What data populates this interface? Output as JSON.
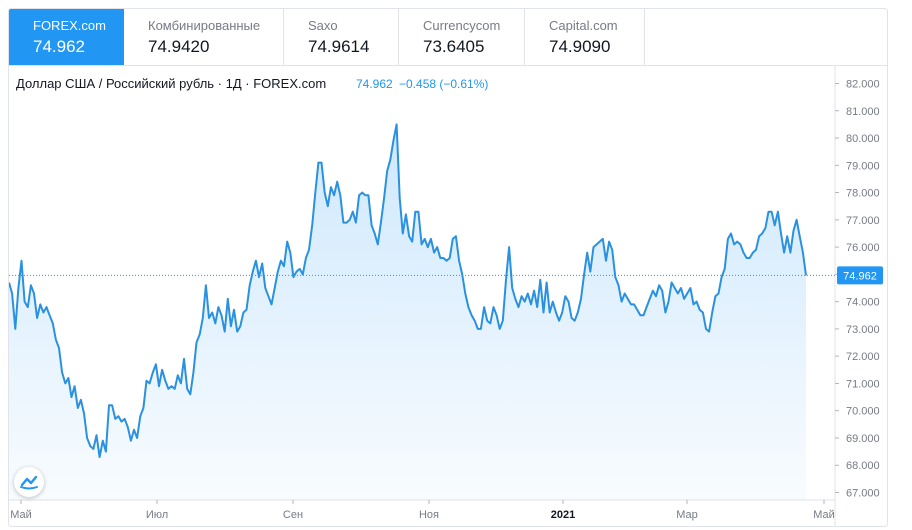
{
  "tabs": [
    {
      "name": "FOREX.com",
      "value": "74.962"
    },
    {
      "name": "Комбинированные",
      "value": "74.9420"
    },
    {
      "name": "Saxo",
      "value": "74.9614"
    },
    {
      "name": "Currencycom",
      "value": "73.6405"
    },
    {
      "name": "Capital.com",
      "value": "74.9090"
    }
  ],
  "legend": {
    "title": "Доллар США / Российский рубль · 1Д · FOREX.com",
    "price": "74.962",
    "change": "−0.458 (−0.61%)"
  },
  "last_price_label": "74.962",
  "colors": {
    "accent": "#2196f3",
    "line": "#2a91e0",
    "fill": "#2196f3",
    "axis_text": "#787b86",
    "grid": "#e0e3eb"
  },
  "icons": {
    "logo": "tradingview-logo-icon"
  },
  "chart_data": {
    "type": "area",
    "title": "Доллар США / Российский рубль · 1Д · FOREX.com",
    "xlabel": "",
    "ylabel": "",
    "ylim": [
      67.0,
      82.5
    ],
    "y_ticks": [
      "82.000",
      "81.000",
      "80.000",
      "79.000",
      "78.000",
      "77.000",
      "76.000",
      "75.000",
      "74.000",
      "73.000",
      "72.000",
      "71.000",
      "70.000",
      "69.000",
      "68.000",
      "67.000"
    ],
    "x_ticks": [
      "Май",
      "Июл",
      "Сен",
      "Ноя",
      "2021",
      "Мар",
      "Май"
    ],
    "y_axis_side": "right",
    "grid": false,
    "last_value": 74.962,
    "values": [
      74.7,
      74.3,
      73.0,
      74.5,
      75.5,
      74.0,
      73.8,
      74.6,
      74.3,
      73.4,
      73.9,
      73.6,
      73.8,
      73.5,
      73.2,
      72.6,
      72.3,
      71.4,
      71.0,
      71.2,
      70.5,
      70.9,
      70.1,
      70.4,
      69.9,
      69.0,
      68.7,
      68.6,
      69.1,
      68.3,
      68.9,
      68.5,
      70.2,
      70.2,
      69.7,
      69.8,
      69.6,
      69.7,
      69.4,
      68.9,
      69.3,
      69.0,
      69.8,
      70.1,
      71.1,
      71.0,
      71.4,
      71.7,
      70.9,
      71.5,
      71.1,
      70.8,
      70.9,
      70.8,
      71.3,
      71.0,
      71.9,
      70.8,
      70.6,
      71.4,
      72.5,
      72.8,
      73.4,
      74.6,
      73.4,
      73.6,
      73.2,
      73.8,
      73.5,
      72.9,
      74.1,
      73.1,
      73.7,
      72.9,
      73.1,
      73.6,
      73.7,
      74.6,
      75.1,
      75.5,
      74.9,
      75.4,
      74.5,
      74.2,
      73.9,
      74.5,
      75.1,
      75.5,
      75.3,
      76.2,
      75.8,
      74.9,
      75.1,
      75.2,
      75.0,
      75.6,
      75.9,
      76.8,
      78.0,
      79.1,
      79.1,
      78.0,
      77.5,
      78.2,
      77.9,
      78.4,
      77.9,
      76.9,
      76.9,
      77.0,
      77.3,
      76.9,
      77.9,
      78.0,
      77.9,
      77.9,
      76.8,
      76.5,
      76.1,
      76.9,
      77.8,
      78.8,
      79.2,
      79.9,
      80.5,
      77.8,
      76.5,
      77.2,
      76.4,
      76.2,
      77.3,
      77.3,
      76.1,
      76.3,
      76.0,
      76.3,
      75.8,
      76.0,
      75.6,
      75.6,
      75.5,
      75.6,
      76.3,
      76.4,
      75.5,
      75.0,
      74.3,
      73.8,
      73.5,
      73.3,
      73.0,
      73.0,
      73.8,
      73.3,
      73.2,
      73.8,
      73.5,
      73.0,
      73.3,
      74.8,
      76.0,
      74.5,
      74.1,
      73.8,
      74.2,
      74.0,
      74.3,
      73.9,
      74.4,
      73.8,
      74.8,
      73.6,
      74.7,
      73.6,
      74.0,
      73.6,
      73.3,
      73.6,
      74.2,
      74.0,
      73.4,
      73.3,
      73.6,
      74.1,
      75.0,
      75.8,
      75.1,
      76.0,
      76.1,
      76.2,
      76.3,
      75.5,
      76.2,
      75.9,
      74.9,
      74.6,
      74.0,
      74.3,
      74.1,
      73.9,
      73.9,
      73.7,
      73.5,
      73.5,
      73.8,
      74.1,
      74.4,
      74.2,
      74.6,
      74.4,
      73.6,
      74.0,
      74.7,
      74.5,
      74.3,
      74.5,
      74.1,
      74.3,
      74.5,
      73.9,
      74.0,
      73.7,
      73.6,
      73.0,
      72.9,
      73.6,
      74.2,
      74.3,
      74.9,
      75.2,
      76.3,
      76.5,
      76.1,
      76.2,
      76.1,
      75.8,
      75.6,
      75.6,
      75.8,
      75.9,
      76.4,
      76.5,
      76.7,
      77.3,
      77.3,
      76.8,
      77.3,
      76.5,
      75.8,
      76.4,
      75.8,
      76.6,
      77.0,
      76.4,
      75.8,
      74.962
    ],
    "series": [
      {
        "values_ref": "values"
      }
    ]
  }
}
